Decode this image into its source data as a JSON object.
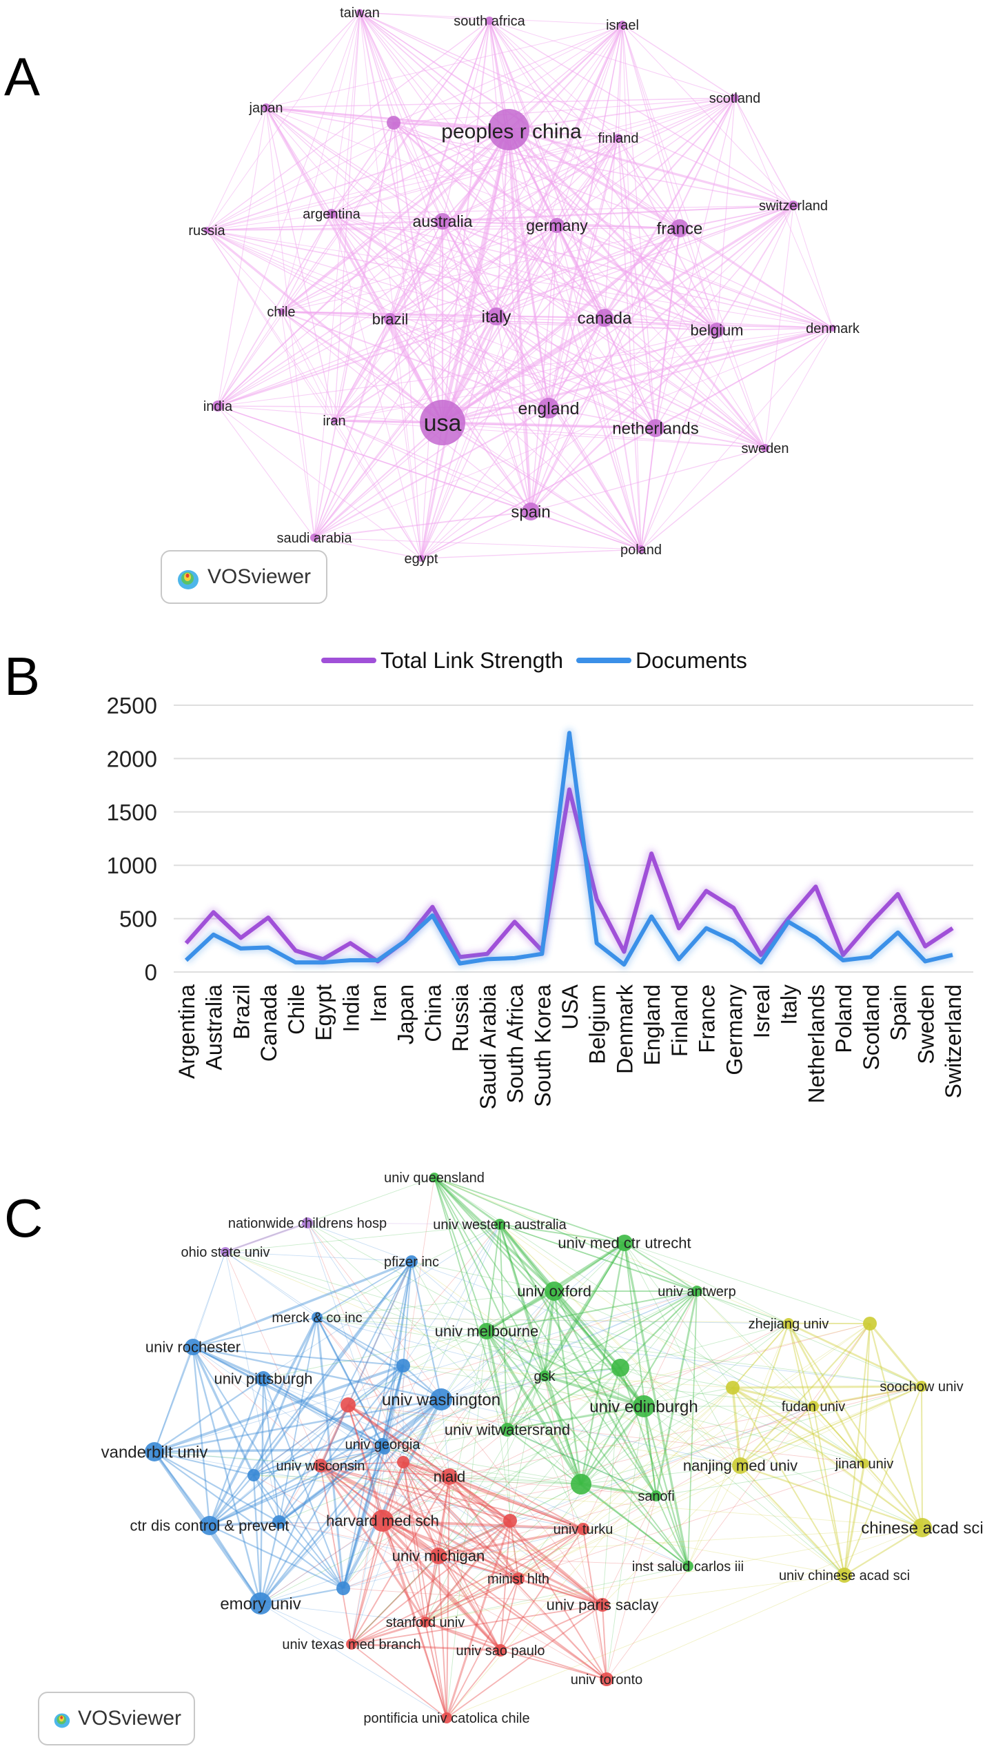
{
  "panel_labels": {
    "a": "A",
    "b": "B",
    "c": "C"
  },
  "vosviewer_label": "VOSviewer",
  "colors": {
    "pink_node": "#c468d0",
    "pink_link": "#f0a8ee",
    "purple_series": "#a050d8",
    "blue_series": "#3b90e8",
    "red_cluster": "#e74c4c",
    "green_cluster": "#3cb944",
    "blue_cluster": "#3a8ad6",
    "yellow_cluster": "#cccc33",
    "violet_cluster": "#b07ad9"
  },
  "network_a": {
    "nodes": [
      "taiwan",
      "south africa",
      "israel",
      "japan",
      "peoples r china",
      "finland",
      "scotland",
      "switzerland",
      "russia",
      "argentina",
      "australia",
      "germany",
      "france",
      "chile",
      "brazil",
      "italy",
      "canada",
      "belgium",
      "denmark",
      "india",
      "iran",
      "usa",
      "england",
      "netherlands",
      "sweden",
      "spain",
      "saudi arabia",
      "egypt",
      "poland"
    ]
  },
  "chart_data": {
    "type": "line",
    "categories": [
      "Argentina",
      "Australia",
      "Brazil",
      "Canada",
      "Chile",
      "Egypt",
      "India",
      "Iran",
      "Japan",
      "China",
      "Russia",
      "Saudi Arabia",
      "South Africa",
      "South Korea",
      "USA",
      "Belgium",
      "Denmark",
      "England",
      "Finland",
      "France",
      "Germany",
      "Isreal",
      "Italy",
      "Netherlands",
      "Poland",
      "Scotland",
      "Spain",
      "Sweden",
      "Switzerland"
    ],
    "series": [
      {
        "name": "Total Link Strength",
        "values": [
          270,
          560,
          320,
          510,
          200,
          120,
          270,
          100,
          290,
          610,
          140,
          170,
          470,
          200,
          1710,
          680,
          190,
          1110,
          410,
          760,
          600,
          160,
          500,
          800,
          160,
          460,
          730,
          240,
          410
        ]
      },
      {
        "name": "Documents",
        "values": [
          110,
          350,
          220,
          230,
          90,
          90,
          110,
          110,
          290,
          530,
          80,
          120,
          130,
          170,
          2240,
          270,
          70,
          520,
          120,
          410,
          290,
          90,
          470,
          320,
          110,
          140,
          370,
          100,
          160
        ]
      }
    ],
    "yticks": [
      "2500",
      "2000",
      "1500",
      "1000",
      "500",
      "0"
    ],
    "ylim": [
      0,
      2500
    ],
    "legend": "top-center",
    "grid": true
  },
  "network_c": {
    "nodes": [
      "univ queensland",
      "nationwide childrens hosp",
      "univ western australia",
      "ohio state univ",
      "univ med ctr utrecht",
      "pfizer inc",
      "univ oxford",
      "univ antwerp",
      "merck & co inc",
      "zhejiang univ",
      "univ rochester",
      "univ melbourne",
      "univ pittsburgh",
      "gsk",
      "soochow univ",
      "univ washington",
      "univ edinburgh",
      "fudan univ",
      "univ witwatersrand",
      "vanderbilt univ",
      "univ georgia",
      "nanjing med univ",
      "jinan univ",
      "univ wisconsin",
      "niaid",
      "sanofi",
      "ctr dis control & prevent",
      "harvard med sch",
      "chinese acad sci",
      "univ turku",
      "univ michigan",
      "inst salud carlos iii",
      "minist hlth",
      "univ chinese acad sci",
      "emory univ",
      "univ paris saclay",
      "stanford univ",
      "univ texas med branch",
      "univ sao paulo",
      "univ toronto",
      "pontificia univ catolica chile"
    ]
  }
}
